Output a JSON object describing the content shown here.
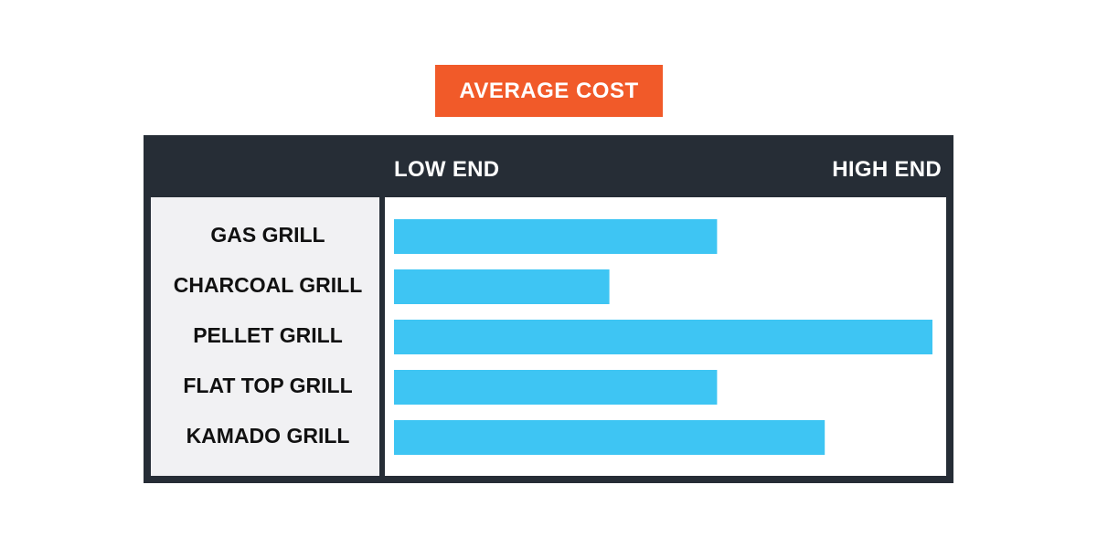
{
  "title": "AVERAGE COST",
  "header": {
    "low_label": "LOW END",
    "high_label": "HIGH END"
  },
  "colors": {
    "title_bg": "#f15a29",
    "frame": "#262d36",
    "category_panel": "#f1f1f3",
    "plot_bg": "#ffffff",
    "bar": "#3ec5f3",
    "text_dark": "#111111",
    "text_light": "#ffffff"
  },
  "chart_data": {
    "type": "bar",
    "orientation": "horizontal",
    "title": "AVERAGE COST",
    "xlabel": "",
    "ylabel": "",
    "axis_labels": [
      "LOW END",
      "HIGH END"
    ],
    "categories": [
      "GAS GRILL",
      "CHARCOAL GRILL",
      "PELLET GRILL",
      "FLAT TOP GRILL",
      "KAMADO GRILL"
    ],
    "values": [
      0.6,
      0.4,
      1.0,
      0.6,
      0.8
    ],
    "xlim": [
      0,
      1
    ],
    "grid": false,
    "legend": "none"
  }
}
